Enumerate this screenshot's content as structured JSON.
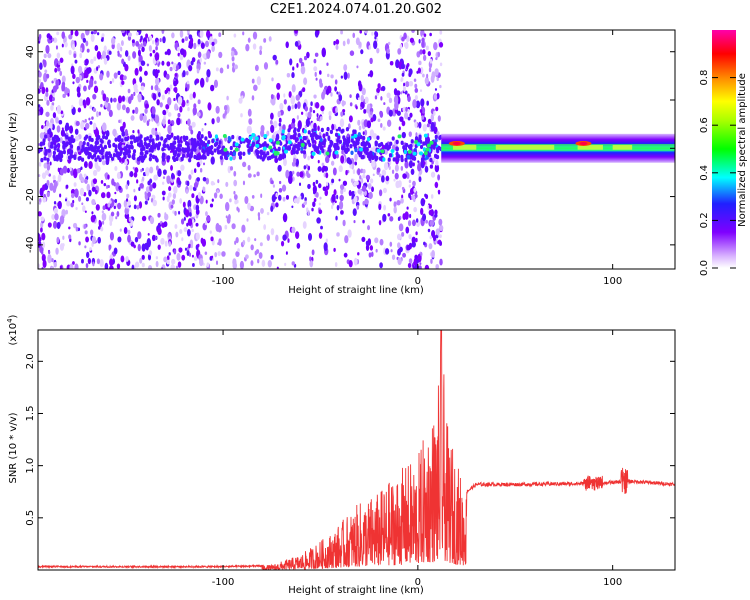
{
  "title": "C2E1.2024.074.01.20.G02",
  "chart_data": [
    {
      "type": "heatmap",
      "xlabel": "Height of straight line (km)",
      "ylabel": "Frequency (Hz)",
      "xlim": [
        -195,
        132
      ],
      "ylim": [
        -50,
        49
      ],
      "xticks": [
        -100,
        0,
        100
      ],
      "yticks": [
        -40,
        -20,
        0,
        20,
        40
      ],
      "colorbar": {
        "label": "Normalized spectral amplitude",
        "ticks": [
          "0.0",
          "0.2",
          "0.4",
          "0.6",
          "0.8"
        ],
        "range": [
          0,
          1
        ],
        "colormap": "rainbow (white-purple-blue-cyan-green-yellow-orange-red-magenta)"
      },
      "description_values": {
        "noise_band_region_x": [
          -195,
          10
        ],
        "narrow_band_region_x": [
          12,
          132
        ],
        "narrow_band_frequency_hz": 0,
        "hotspots": [
          {
            "x": 20,
            "y": 2,
            "value": 0.95
          },
          {
            "x": 85,
            "y": 2,
            "value": 0.95
          }
        ]
      }
    },
    {
      "type": "line",
      "xlabel": "Height of straight line (km)",
      "ylabel": "SNR (10 * v/v)",
      "y_multiplier": "(x10",
      "y_multiplier_exp": "4",
      "y_multiplier_close": ")",
      "xlim": [
        -195,
        132
      ],
      "ylim": [
        0,
        2.3
      ],
      "xticks": [
        -100,
        0,
        100
      ],
      "yticks": [
        0.5,
        1.0,
        1.5,
        2.0
      ],
      "yticklabels": [
        "0.5",
        "1.0",
        "1.5",
        "2.0"
      ],
      "series": [
        {
          "color": "#ef3333",
          "envelope": [
            {
              "x": -195,
              "y": 0.04
            },
            {
              "x": -100,
              "y": 0.04
            },
            {
              "x": -75,
              "y": 0.05
            },
            {
              "x": -60,
              "y": 0.15
            },
            {
              "x": -45,
              "y": 0.35
            },
            {
              "x": -30,
              "y": 0.65
            },
            {
              "x": -20,
              "y": 0.75
            },
            {
              "x": -10,
              "y": 0.95
            },
            {
              "x": 0,
              "y": 1.1
            },
            {
              "x": 5,
              "y": 1.4
            },
            {
              "x": 10,
              "y": 1.6
            },
            {
              "x": 12,
              "y": 2.3
            },
            {
              "x": 15,
              "y": 1.4
            },
            {
              "x": 20,
              "y": 1.05
            },
            {
              "x": 25,
              "y": 0.75
            },
            {
              "x": 30,
              "y": 0.82
            },
            {
              "x": 50,
              "y": 0.82
            },
            {
              "x": 90,
              "y": 0.83
            },
            {
              "x": 110,
              "y": 0.85
            },
            {
              "x": 132,
              "y": 0.82
            }
          ]
        }
      ]
    }
  ]
}
